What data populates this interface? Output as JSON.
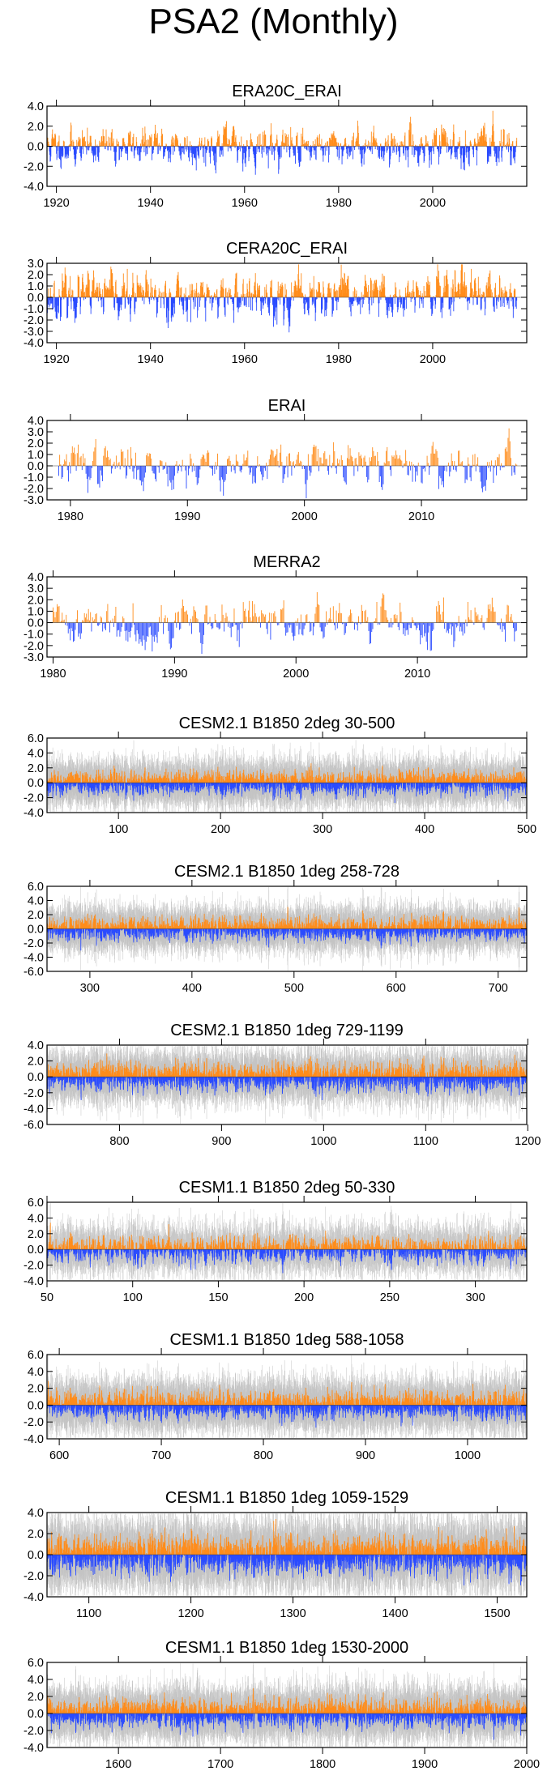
{
  "figure": {
    "title": "PSA2 (Monthly)"
  },
  "colors": {
    "positive": "#ff8c1a",
    "negative": "#2a4bff",
    "spread": "#c4c4c4",
    "axis": "#000000"
  },
  "chart_data": [
    {
      "type": "bar",
      "title": "ERA20C_ERAI",
      "xlim": [
        1918,
        2020
      ],
      "ylim": [
        -4,
        4
      ],
      "yticks": [
        4,
        2,
        0,
        -2,
        -4
      ],
      "ytick_labels": [
        "4.0",
        "2.0",
        "0.0",
        "-2.0",
        "-4.0"
      ],
      "xticks": [
        1920,
        1940,
        1960,
        1980,
        2000
      ],
      "xtick_labels": [
        "1920",
        "1940",
        "1960",
        "1980",
        "2000"
      ],
      "x_range": [
        1918,
        2018
      ],
      "step": 0.0833,
      "amp": 0.75,
      "seed": 11,
      "spread": 0
    },
    {
      "type": "bar",
      "title": "CERA20C_ERAI",
      "xlim": [
        1918,
        2020
      ],
      "ylim": [
        -4,
        3
      ],
      "yticks": [
        3,
        2,
        1,
        0,
        -1,
        -2,
        -3,
        -4
      ],
      "ytick_labels": [
        "3.0",
        "2.0",
        "1.0",
        "0.0",
        "-1.0",
        "-2.0",
        "-3.0",
        "-4.0"
      ],
      "xticks": [
        1920,
        1940,
        1960,
        1980,
        2000
      ],
      "xtick_labels": [
        "1920",
        "1940",
        "1960",
        "1980",
        "2000"
      ],
      "x_range": [
        1918,
        2018
      ],
      "step": 0.0833,
      "amp": 0.8,
      "seed": 23,
      "spread": 0
    },
    {
      "type": "bar",
      "title": "ERAI",
      "xlim": [
        1978,
        2019
      ],
      "ylim": [
        -3,
        4
      ],
      "yticks": [
        4,
        3,
        2,
        1,
        0,
        -1,
        -2,
        -3
      ],
      "ytick_labels": [
        "4.0",
        "3.0",
        "2.0",
        "1.0",
        "0.0",
        "-1.0",
        "-2.0",
        "-3.0"
      ],
      "xticks": [
        1980,
        1990,
        2000,
        2010
      ],
      "xtick_labels": [
        "1980",
        "1990",
        "2000",
        "2010"
      ],
      "x_range": [
        1979,
        2018.3
      ],
      "step": 0.0833,
      "amp": 0.8,
      "seed": 37,
      "spread": 0
    },
    {
      "type": "bar",
      "title": "MERRA2",
      "xlim": [
        1979.5,
        2019
      ],
      "ylim": [
        -3,
        4
      ],
      "yticks": [
        4,
        3,
        2,
        1,
        0,
        -1,
        -2,
        -3
      ],
      "ytick_labels": [
        "4.0",
        "3.0",
        "2.0",
        "1.0",
        "0.0",
        "-1.0",
        "-2.0",
        "-3.0"
      ],
      "xticks": [
        1980,
        1990,
        2000,
        2010
      ],
      "xtick_labels": [
        "1980",
        "1990",
        "2000",
        "2010"
      ],
      "x_range": [
        1980,
        2018.3
      ],
      "step": 0.0833,
      "amp": 0.8,
      "seed": 41,
      "spread": 0
    },
    {
      "type": "bar",
      "title": "CESM2.1 B1850 2deg 30-500",
      "xlim": [
        30,
        500
      ],
      "ylim": [
        -4,
        6
      ],
      "yticks": [
        6,
        4,
        2,
        0,
        -2,
        -4
      ],
      "ytick_labels": [
        "6.0",
        "4.0",
        "2.0",
        "0.0",
        "-2.0",
        "-4.0"
      ],
      "xticks": [
        100,
        200,
        300,
        400,
        500
      ],
      "xtick_labels": [
        "100",
        "200",
        "300",
        "400",
        "500"
      ],
      "x_range": [
        30,
        500
      ],
      "step": 0.0833,
      "amp": 0.6,
      "seed": 53,
      "spread": 1
    },
    {
      "type": "bar",
      "title": "CESM2.1 B1850 1deg 258-728",
      "xlim": [
        258,
        728
      ],
      "ylim": [
        -6,
        6
      ],
      "yticks": [
        6,
        4,
        2,
        0,
        -2,
        -4,
        -6
      ],
      "ytick_labels": [
        "6.0",
        "4.0",
        "2.0",
        "0.0",
        "-2.0",
        "-4.0",
        "-6.0"
      ],
      "xticks": [
        300,
        400,
        500,
        600,
        700
      ],
      "xtick_labels": [
        "300",
        "400",
        "500",
        "600",
        "700"
      ],
      "x_range": [
        258,
        728
      ],
      "step": 0.0833,
      "amp": 0.6,
      "seed": 61,
      "spread": 1
    },
    {
      "type": "bar",
      "title": "CESM2.1 B1850 1deg 729-1199",
      "xlim": [
        729,
        1199
      ],
      "ylim": [
        -6,
        4
      ],
      "yticks": [
        4,
        2,
        0,
        -2,
        -4,
        -6
      ],
      "ytick_labels": [
        "4.0",
        "2.0",
        "0.0",
        "-2.0",
        "-4.0",
        "-6.0"
      ],
      "xticks": [
        800,
        900,
        1000,
        1100,
        1200
      ],
      "xtick_labels": [
        "800",
        "900",
        "1000",
        "1100",
        "1200"
      ],
      "x_range": [
        729,
        1199
      ],
      "step": 0.0833,
      "amp": 0.65,
      "seed": 71,
      "spread": 1
    },
    {
      "type": "bar",
      "title": "CESM1.1 B1850 2deg 50-330",
      "xlim": [
        50,
        330
      ],
      "ylim": [
        -4,
        6
      ],
      "yticks": [
        6,
        4,
        2,
        0,
        -2,
        -4
      ],
      "ytick_labels": [
        "6.0",
        "4.0",
        "2.0",
        "0.0",
        "-2.0",
        "-4.0"
      ],
      "xticks": [
        50,
        100,
        150,
        200,
        250,
        300
      ],
      "xtick_labels": [
        "50",
        "100",
        "150",
        "200",
        "250",
        "300"
      ],
      "x_range": [
        50,
        330
      ],
      "step": 0.0833,
      "amp": 0.65,
      "seed": 83,
      "spread": 1
    },
    {
      "type": "bar",
      "title": "CESM1.1 B1850 1deg 588-1058",
      "xlim": [
        588,
        1058
      ],
      "ylim": [
        -4,
        6
      ],
      "yticks": [
        6,
        4,
        2,
        0,
        -2,
        -4
      ],
      "ytick_labels": [
        "6.0",
        "4.0",
        "2.0",
        "0.0",
        "-2.0",
        "-4.0"
      ],
      "xticks": [
        600,
        700,
        800,
        900,
        1000
      ],
      "xtick_labels": [
        "600",
        "700",
        "800",
        "900",
        "1000"
      ],
      "x_range": [
        588,
        1058
      ],
      "step": 0.0833,
      "amp": 0.6,
      "seed": 97,
      "spread": 1
    },
    {
      "type": "bar",
      "title": "CESM1.1 B1850 1deg 1059-1529",
      "xlim": [
        1059,
        1529
      ],
      "ylim": [
        -4,
        4
      ],
      "yticks": [
        4,
        2,
        0,
        -2,
        -4
      ],
      "ytick_labels": [
        "4.0",
        "2.0",
        "0.0",
        "-2.0",
        "-4.0"
      ],
      "xticks": [
        1100,
        1200,
        1300,
        1400,
        1500
      ],
      "xtick_labels": [
        "1100",
        "1200",
        "1300",
        "1400",
        "1500"
      ],
      "x_range": [
        1059,
        1529
      ],
      "step": 0.0833,
      "amp": 0.65,
      "seed": 103,
      "spread": 1
    },
    {
      "type": "bar",
      "title": "CESM1.1 B1850 1deg 1530-2000",
      "xlim": [
        1530,
        2000
      ],
      "ylim": [
        -4,
        6
      ],
      "yticks": [
        6,
        4,
        2,
        0,
        -2,
        -4
      ],
      "ytick_labels": [
        "6.0",
        "4.0",
        "2.0",
        "0.0",
        "-2.0",
        "-4.0"
      ],
      "xticks": [
        1600,
        1700,
        1800,
        1900,
        2000
      ],
      "xtick_labels": [
        "1600",
        "1700",
        "1800",
        "1900",
        "2000"
      ],
      "x_range": [
        1530,
        2000
      ],
      "step": 0.0833,
      "amp": 0.6,
      "seed": 113,
      "spread": 1
    }
  ]
}
